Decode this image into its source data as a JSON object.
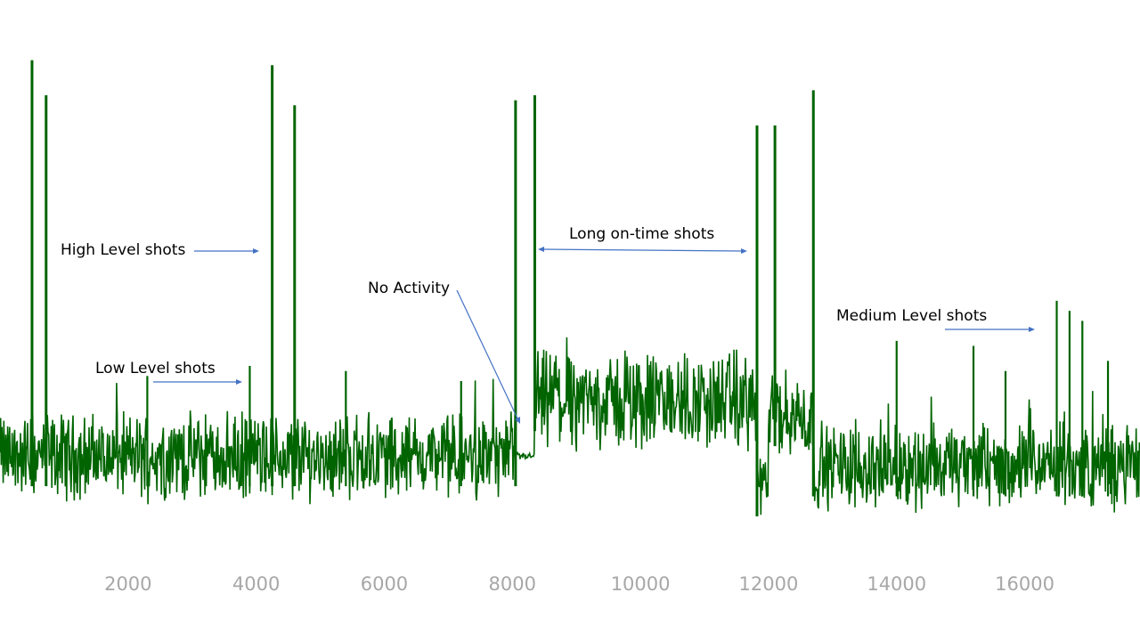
{
  "chart_data": {
    "type": "line",
    "title": "",
    "xlabel": "",
    "ylabel": "",
    "xlim": [
      0,
      17800
    ],
    "ylim": [
      0,
      1
    ],
    "grid": false,
    "legend": "none",
    "line_color": "#006400",
    "annotation_color": "#4472c4",
    "x_ticks": [
      2000,
      4000,
      6000,
      8000,
      10000,
      12000,
      14000,
      16000
    ],
    "x_tick_labels": [
      "2000",
      "4000",
      "6000",
      "8000",
      "10000",
      "12000",
      "14000",
      "16000"
    ],
    "segments": [
      {
        "x_start": 0,
        "x_end": 8050,
        "baseline": 0.2,
        "noise": 0.065
      },
      {
        "x_start": 8050,
        "x_end": 8350,
        "baseline": 0.2,
        "noise": 0.005
      },
      {
        "x_start": 8350,
        "x_end": 11820,
        "baseline": 0.31,
        "noise": 0.075
      },
      {
        "x_start": 11820,
        "x_end": 12000,
        "baseline": 0.14,
        "noise": 0.05
      },
      {
        "x_start": 12000,
        "x_end": 12700,
        "baseline": 0.28,
        "noise": 0.07
      },
      {
        "x_start": 12700,
        "x_end": 17800,
        "baseline": 0.18,
        "noise": 0.065
      }
    ],
    "spikes": [
      {
        "x": 500,
        "y": 0.99
      },
      {
        "x": 720,
        "y": 0.92
      },
      {
        "x": 4250,
        "y": 0.98
      },
      {
        "x": 4600,
        "y": 0.9
      },
      {
        "x": 8050,
        "y": 0.91
      },
      {
        "x": 8350,
        "y": 0.92
      },
      {
        "x": 11820,
        "y": 0.86
      },
      {
        "x": 12100,
        "y": 0.86
      },
      {
        "x": 12700,
        "y": 0.93
      },
      {
        "x": 2300,
        "y": 0.36
      },
      {
        "x": 3900,
        "y": 0.38
      },
      {
        "x": 5400,
        "y": 0.37
      },
      {
        "x": 7200,
        "y": 0.35
      },
      {
        "x": 14000,
        "y": 0.43
      },
      {
        "x": 15200,
        "y": 0.42
      },
      {
        "x": 15700,
        "y": 0.37
      },
      {
        "x": 16500,
        "y": 0.51
      },
      {
        "x": 16700,
        "y": 0.49
      },
      {
        "x": 16900,
        "y": 0.47
      },
      {
        "x": 17300,
        "y": 0.39
      }
    ],
    "annotations": [
      {
        "text": "High Level shots"
      },
      {
        "text": "Low Level shots"
      },
      {
        "text": "No Activity"
      },
      {
        "text": "Long on-time shots"
      },
      {
        "text": "Medium Level shots"
      }
    ]
  }
}
